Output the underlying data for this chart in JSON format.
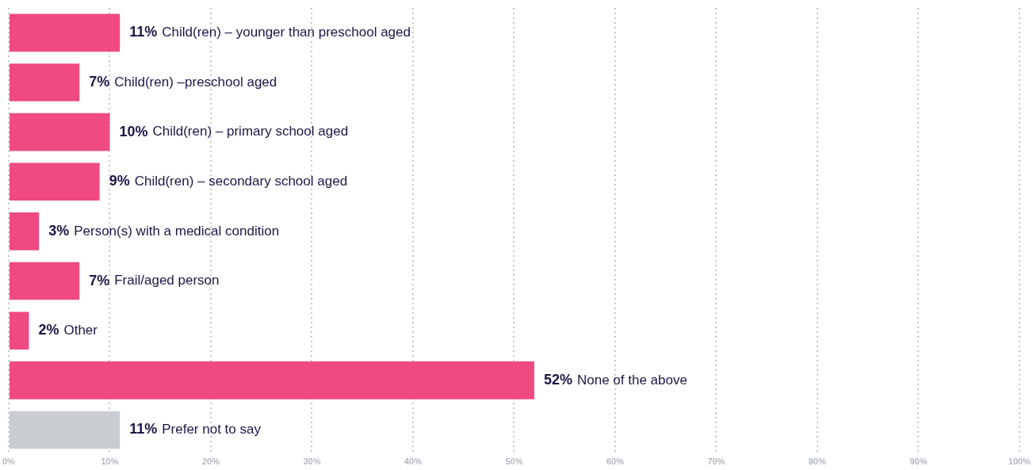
{
  "chart_data": {
    "type": "bar",
    "orientation": "horizontal",
    "categories": [
      "Child(ren) – younger than preschool aged",
      "Child(ren) –preschool aged",
      "Child(ren) – primary school aged",
      "Child(ren) – secondary school aged",
      "Person(s) with a medical condition",
      "Frail/aged person",
      "Other",
      "None of the above",
      "Prefer not to say"
    ],
    "values": [
      11,
      7,
      10,
      9,
      3,
      7,
      2,
      52,
      11
    ],
    "colors": [
      "#ef4a81",
      "#ef4a81",
      "#ef4a81",
      "#ef4a81",
      "#ef4a81",
      "#ef4a81",
      "#ef4a81",
      "#ef4a81",
      "#c9ccd1"
    ],
    "value_labels": [
      "11%",
      "7%",
      "10%",
      "9%",
      "3%",
      "7%",
      "2%",
      "52%",
      "11%"
    ],
    "xlim": [
      0,
      100
    ],
    "xticks": [
      {
        "value": 0,
        "label": "0%"
      },
      {
        "value": 10,
        "label": "10%"
      },
      {
        "value": 20,
        "label": "20%"
      },
      {
        "value": 30,
        "label": "30%"
      },
      {
        "value": 40,
        "label": "40%"
      },
      {
        "value": 50,
        "label": "50%"
      },
      {
        "value": 60,
        "label": "60%"
      },
      {
        "value": 70,
        "label": "70%"
      },
      {
        "value": 80,
        "label": "80%"
      },
      {
        "value": 90,
        "label": "90%"
      },
      {
        "value": 100,
        "label": "100%"
      }
    ],
    "grid": "x",
    "legend": false,
    "tick_labels": "x"
  }
}
